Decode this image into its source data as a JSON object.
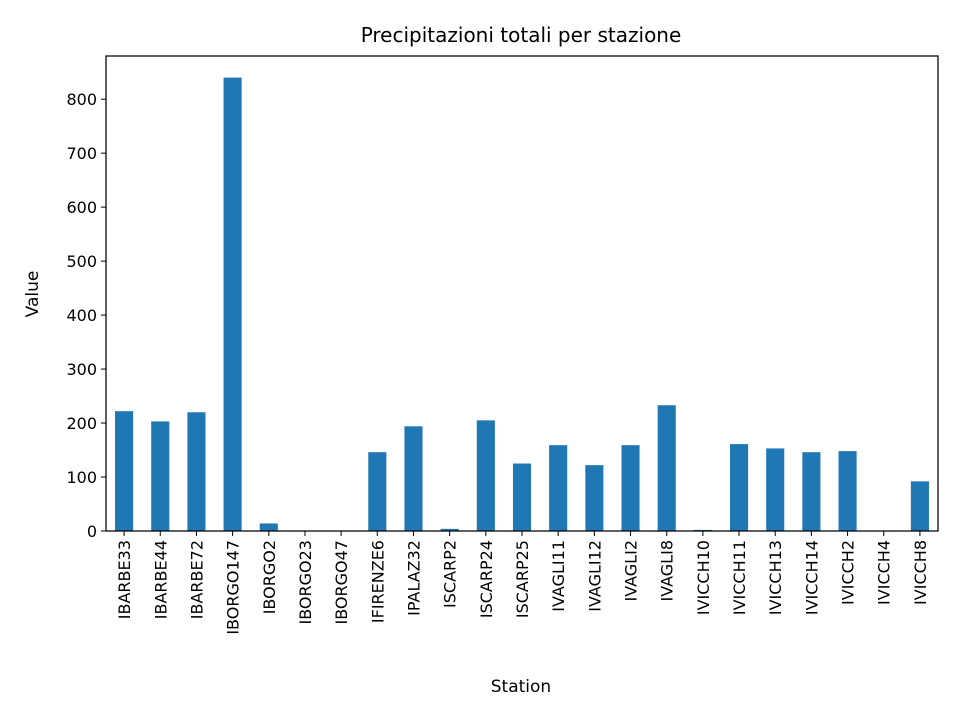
{
  "chart_data": {
    "type": "bar",
    "title": "Precipitazioni totali per stazione",
    "xlabel": "Station",
    "ylabel": "Value",
    "ylim": [
      0,
      880
    ],
    "yticks": [
      0,
      100,
      200,
      300,
      400,
      500,
      600,
      700,
      800
    ],
    "grid": false,
    "bar_color": "#1f77b4",
    "categories": [
      "IBARBE33",
      "IBARBE44",
      "IBARBE72",
      "IBORGO147",
      "IBORGO2",
      "IBORGO23",
      "IBORGO47",
      "IFIRENZE6",
      "IPALAZ32",
      "ISCARP2",
      "ISCARP24",
      "ISCARP25",
      "IVAGLI11",
      "IVAGLI12",
      "IVAGLI2",
      "IVAGLI8",
      "IVICCH10",
      "IVICCH11",
      "IVICCH13",
      "IVICCH14",
      "IVICCH2",
      "IVICCH4",
      "IVICCH8"
    ],
    "values": [
      222,
      203,
      220,
      840,
      14,
      0,
      0,
      146,
      194,
      4,
      205,
      125,
      159,
      122,
      159,
      233,
      2,
      161,
      153,
      146,
      148,
      0,
      92
    ]
  }
}
